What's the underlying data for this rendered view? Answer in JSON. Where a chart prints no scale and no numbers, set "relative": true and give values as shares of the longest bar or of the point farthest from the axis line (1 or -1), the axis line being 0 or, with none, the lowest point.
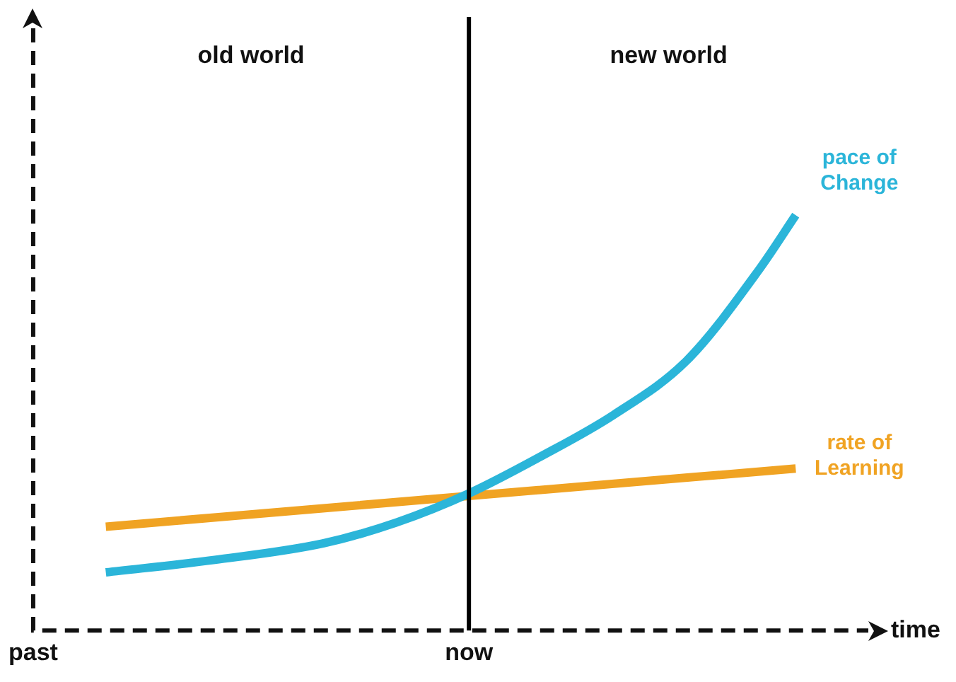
{
  "chart_data": {
    "type": "line",
    "relative": true,
    "xlabel": "time",
    "categories": [
      "past",
      null,
      null,
      null,
      null,
      null,
      null,
      null,
      null,
      null,
      null,
      null,
      "now",
      null,
      null,
      null,
      null,
      null,
      null,
      null,
      null,
      null,
      null,
      null
    ],
    "series": [
      {
        "name": "pace of Change",
        "color": "#2bb5d9",
        "values": [
          null,
          null,
          0.14,
          null,
          null,
          0.17,
          null,
          null,
          0.21,
          null,
          0.26,
          null,
          0.33,
          null,
          0.42,
          null,
          0.52,
          null,
          0.65,
          null,
          0.87,
          1,
          null,
          null
        ]
      },
      {
        "name": "rate of Learning",
        "color": "#f0a323",
        "values": [
          null,
          null,
          0.25,
          null,
          null,
          null,
          null,
          null,
          null,
          null,
          null,
          null,
          0.324,
          null,
          null,
          null,
          null,
          null,
          null,
          null,
          null,
          0.39,
          null,
          null
        ]
      }
    ],
    "ref_lines": [
      {
        "axis": "x",
        "value": "now",
        "color": "#000000"
      }
    ],
    "annotations": [
      "old world",
      "new world"
    ],
    "grid": false,
    "legend": false,
    "tick_labels": "x",
    "marker": "none",
    "line_style": "solid"
  }
}
